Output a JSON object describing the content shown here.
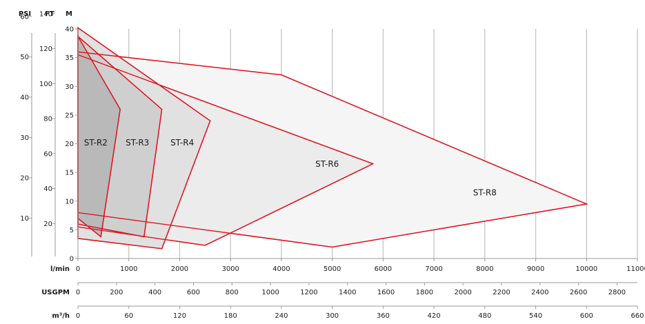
{
  "chart_data": {
    "type": "area",
    "title": "",
    "x_axis": {
      "label": "l/min",
      "range": [
        0,
        11000
      ],
      "ticks": [
        0,
        1000,
        2000,
        3000,
        4000,
        5000,
        6000,
        7000,
        8000,
        9000,
        10000,
        11000
      ],
      "tick_labels": [
        "0",
        "1000",
        "2000",
        "3000",
        "4000",
        "5000",
        "6000",
        "7000",
        "8000",
        "9000",
        "10000",
        "11000"
      ]
    },
    "secondary_x_axes": [
      {
        "label": "USGPM",
        "ticks": [
          0,
          200,
          400,
          600,
          800,
          1000,
          1200,
          1400,
          1600,
          1800,
          2000,
          2200,
          2400,
          2600,
          2800
        ],
        "tick_labels": [
          "0",
          "200",
          "400",
          "600",
          "800",
          "1000",
          "1200",
          "1400",
          "1600",
          "1800",
          "2000",
          "2200",
          "2400",
          "2600",
          "2800"
        ]
      },
      {
        "label": "m³/h",
        "ticks": [
          0,
          60,
          120,
          180,
          240,
          300,
          360,
          420,
          480,
          540,
          600,
          660
        ],
        "tick_labels": [
          "0",
          "60",
          "120",
          "180",
          "240",
          "300",
          "360",
          "420",
          "480",
          "540",
          "600",
          "660"
        ]
      }
    ],
    "y_axis": {
      "label": "M",
      "range": [
        0,
        40
      ],
      "ticks": [
        0,
        5,
        10,
        15,
        20,
        25,
        30,
        35,
        40
      ],
      "tick_labels": [
        "0",
        "5",
        "10",
        "15",
        "20",
        "25",
        "30",
        "35",
        "40"
      ]
    },
    "secondary_y_axes": [
      {
        "label": "FT",
        "ticks": [
          20,
          40,
          60,
          80,
          100,
          120,
          140
        ],
        "tick_labels": [
          "20",
          "40",
          "60",
          "80",
          "100",
          "120",
          "140"
        ]
      },
      {
        "label": "PSI",
        "ticks": [
          10,
          20,
          30,
          40,
          50,
          60
        ],
        "tick_labels": [
          "10",
          "20",
          "30",
          "40",
          "50",
          "60"
        ]
      }
    ],
    "grid": "vertical",
    "legend": "none",
    "series": [
      {
        "name": "ST-R8",
        "label_at": [
          8000,
          11
        ],
        "points": [
          [
            0,
            36
          ],
          [
            4000,
            32
          ],
          [
            10000,
            9.5
          ],
          [
            5000,
            2
          ],
          [
            0,
            8
          ]
        ]
      },
      {
        "name": "ST-R6",
        "label_at": [
          4900,
          16
        ],
        "points": [
          [
            0,
            35.5
          ],
          [
            5800,
            16.5
          ],
          [
            2500,
            2.3
          ],
          [
            0,
            5.5
          ]
        ]
      },
      {
        "name": "ST-R4",
        "label_at": [
          2050,
          19.7
        ],
        "points": [
          [
            0,
            40.2
          ],
          [
            2600,
            24
          ],
          [
            1650,
            1.7
          ],
          [
            0,
            3.5
          ]
        ]
      },
      {
        "name": "ST-R3",
        "label_at": [
          1170,
          19.7
        ],
        "points": [
          [
            0,
            38.7
          ],
          [
            1650,
            26
          ],
          [
            1300,
            3.8
          ],
          [
            0,
            6
          ]
        ]
      },
      {
        "name": "ST-R2",
        "label_at": [
          350,
          19.7
        ],
        "points": [
          [
            0,
            38.7
          ],
          [
            830,
            26
          ],
          [
            450,
            3.8
          ],
          [
            0,
            7
          ]
        ]
      }
    ],
    "colors": {
      "outline": "#e0141e",
      "ST-R8": "#f5f5f6",
      "ST-R6": "#ececec",
      "ST-R4": "#e1e1e1",
      "ST-R3": "#cfcfcf",
      "ST-R2": "#b9b9b9"
    }
  }
}
